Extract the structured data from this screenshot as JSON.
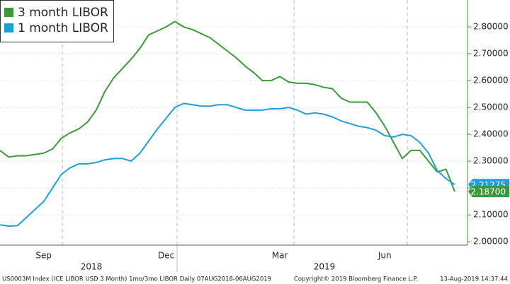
{
  "chart_data": {
    "type": "line",
    "categories": [
      null,
      null,
      null,
      null,
      null,
      "Sep",
      null,
      null,
      null,
      null,
      null,
      null,
      null,
      null,
      null,
      null,
      null,
      null,
      null,
      "Dec",
      null,
      null,
      null,
      null,
      null,
      null,
      null,
      null,
      null,
      null,
      null,
      null,
      "Mar",
      null,
      null,
      null,
      null,
      null,
      null,
      null,
      null,
      null,
      null,
      null,
      "Jun",
      null,
      null,
      null,
      null,
      null,
      null,
      null,
      null
    ],
    "years": [
      "2018",
      "2019"
    ],
    "series": [
      {
        "name": "3 month LIBOR",
        "color": "#3a9a3a",
        "values": [
          2.34,
          2.315,
          2.32,
          2.32,
          2.325,
          2.33,
          2.345,
          2.385,
          2.405,
          2.42,
          2.445,
          2.49,
          2.56,
          2.61,
          2.645,
          2.68,
          2.72,
          2.77,
          2.785,
          2.8,
          2.82,
          2.8,
          2.79,
          2.775,
          2.76,
          2.735,
          2.71,
          2.685,
          2.655,
          2.63,
          2.6,
          2.6,
          2.615,
          2.595,
          2.59,
          2.59,
          2.585,
          2.575,
          2.57,
          2.535,
          2.52,
          2.52,
          2.52,
          2.48,
          2.43,
          2.37,
          2.31,
          2.34,
          2.34,
          2.3,
          2.26,
          2.27,
          2.187
        ],
        "value_labels": [
          null,
          null,
          null,
          null,
          null,
          null,
          null,
          null,
          null,
          null,
          null,
          null,
          null,
          null,
          null,
          null,
          null,
          null,
          null,
          null,
          null,
          null,
          null,
          null,
          null,
          null,
          null,
          null,
          null,
          null,
          null,
          null,
          null,
          null,
          null,
          null,
          null,
          null,
          null,
          null,
          null,
          null,
          null,
          null,
          null,
          null,
          null,
          null,
          null,
          null,
          null,
          null,
          "2.18700"
        ]
      },
      {
        "name": "1 month LIBOR",
        "color": "#1f9fd8",
        "values": [
          2.063,
          2.058,
          2.06,
          2.09,
          2.12,
          2.15,
          2.2,
          2.25,
          2.275,
          2.29,
          2.29,
          2.295,
          2.305,
          2.31,
          2.31,
          2.3,
          2.33,
          2.375,
          2.42,
          2.46,
          2.5,
          2.515,
          2.51,
          2.505,
          2.505,
          2.51,
          2.51,
          2.5,
          2.49,
          2.49,
          2.49,
          2.495,
          2.495,
          2.5,
          2.49,
          2.475,
          2.48,
          2.475,
          2.465,
          2.45,
          2.44,
          2.43,
          2.425,
          2.415,
          2.395,
          2.39,
          2.4,
          2.395,
          2.37,
          2.33,
          2.265,
          2.235,
          2.21275
        ],
        "value_labels": [
          null,
          null,
          null,
          null,
          null,
          null,
          null,
          null,
          null,
          null,
          null,
          null,
          null,
          null,
          null,
          null,
          null,
          null,
          null,
          null,
          null,
          null,
          null,
          null,
          null,
          null,
          null,
          null,
          null,
          null,
          null,
          null,
          null,
          null,
          null,
          null,
          null,
          null,
          null,
          null,
          null,
          null,
          null,
          null,
          null,
          null,
          null,
          null,
          null,
          null,
          null,
          null,
          "2.21275"
        ]
      }
    ],
    "ylim": [
      1.99,
      2.9
    ],
    "yticks": [
      {
        "value": 2.0,
        "label": "2.00000"
      },
      {
        "value": 2.1,
        "label": "2.10000"
      },
      {
        "value": 2.2,
        "label": "2.20000"
      },
      {
        "value": 2.3,
        "label": "2.30000"
      },
      {
        "value": 2.4,
        "label": "2.40000"
      },
      {
        "value": 2.5,
        "label": "2.50000"
      },
      {
        "value": 2.6,
        "label": "2.60000"
      },
      {
        "value": 2.7,
        "label": "2.70000"
      },
      {
        "value": 2.8,
        "label": "2.80000"
      }
    ],
    "grid": true,
    "legend": "top-left",
    "footer": [
      "US0003M Index (ICE LIBOR USD 3 Month) 1mo/3mo LIBOR  Daily 07AUG2018-06AUG2019",
      "Copyright© 2019 Bloomberg Finance L.P.",
      "13-Aug-2019 14:37:44"
    ]
  }
}
